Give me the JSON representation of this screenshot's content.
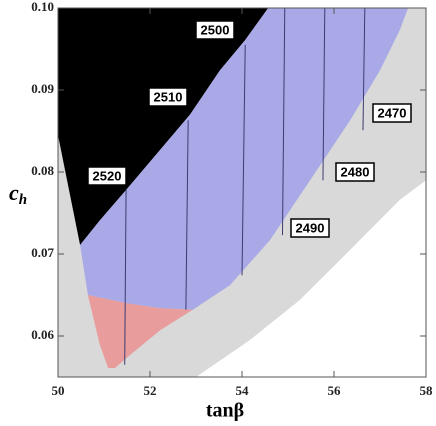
{
  "chart_data": {
    "type": "region",
    "x_label": "tanβ",
    "y_label": "c",
    "y_label_sub": "h",
    "xlim": [
      50,
      58
    ],
    "ylim": [
      0.055,
      0.1
    ],
    "xticks": [
      50,
      52,
      54,
      56,
      58
    ],
    "yticks": [
      0.06,
      0.07,
      0.08,
      0.09,
      {
        "value": 0.1,
        "label": "0.10"
      }
    ],
    "background": "#d9d9d9",
    "regions": [
      {
        "color": "#ffffff",
        "x": [
          53.0,
          54.17,
          55.26,
          56.35,
          57.43,
          58,
          58,
          53.0
        ],
        "y": [
          0.055,
          0.0595,
          0.0644,
          0.0705,
          0.0766,
          0.079,
          0.055,
          0.055
        ]
      },
      {
        "color": "#000000",
        "x": [
          50,
          50,
          54.57,
          54.07,
          53.52,
          52.87,
          52.22,
          51.57,
          50.91,
          50.48
        ],
        "y": [
          0.0845,
          0.1,
          0.1,
          0.0961,
          0.0924,
          0.087,
          0.0827,
          0.0784,
          0.0741,
          0.0711
        ]
      },
      {
        "color": "#a9a9e8",
        "x": [
          50.48,
          50.91,
          51.57,
          52.22,
          52.87,
          53.52,
          54.07,
          54.57,
          57.61,
          57.43,
          57.0,
          56.35,
          55.48,
          54.61,
          53.74,
          52.93,
          52.2,
          51.5,
          50.65
        ],
        "y": [
          0.0711,
          0.0741,
          0.0784,
          0.0827,
          0.087,
          0.0924,
          0.0961,
          0.1,
          0.1,
          0.0973,
          0.0924,
          0.0863,
          0.079,
          0.0717,
          0.0662,
          0.0632,
          0.0634,
          0.064,
          0.065
        ]
      },
      {
        "color": "#e99c9c",
        "x": [
          50.65,
          51.5,
          52.2,
          52.93,
          52.22,
          51.57,
          51.24,
          51.09,
          50.91
        ],
        "y": [
          0.065,
          0.064,
          0.0634,
          0.0632,
          0.0607,
          0.0577,
          0.0561,
          0.0561,
          0.0589
        ]
      }
    ],
    "lines": [
      {
        "color": "#3b3b70",
        "x": [
          51.48,
          51.45
        ],
        "y": [
          0.0778,
          0.0565
        ]
      },
      {
        "color": "#3b3b70",
        "x": [
          52.83,
          52.78
        ],
        "y": [
          0.0863,
          0.0632
        ]
      },
      {
        "color": "#3b3b70",
        "x": [
          54.07,
          54.0
        ],
        "y": [
          0.0955,
          0.0674
        ]
      },
      {
        "color": "#3b3b70",
        "x": [
          54.93,
          54.88
        ],
        "y": [
          0.1,
          0.0723
        ]
      },
      {
        "color": "#3b3b70",
        "x": [
          55.8,
          55.76
        ],
        "y": [
          0.1,
          0.079
        ]
      },
      {
        "color": "#3b3b70",
        "x": [
          56.67,
          56.63
        ],
        "y": [
          0.1,
          0.0851
        ]
      }
    ],
    "contour_labels": [
      2500,
      2510,
      2520,
      2470,
      2480,
      2490
    ]
  }
}
